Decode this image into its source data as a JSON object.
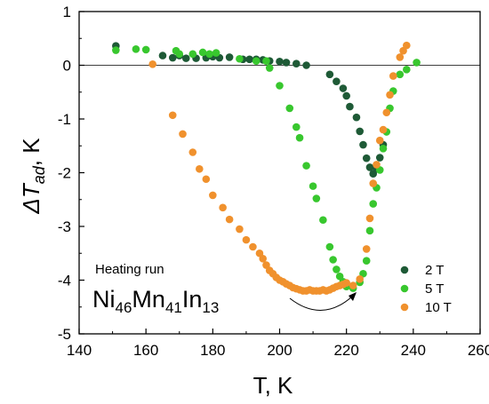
{
  "chart_data": {
    "type": "scatter",
    "xlabel": "T, K",
    "ylabel_main": "ΔT",
    "ylabel_sub": "ad",
    "ylabel_suffix": ", K",
    "xlim": [
      140,
      260
    ],
    "ylim": [
      -5,
      1
    ],
    "xticks": [
      140,
      160,
      180,
      200,
      220,
      240,
      260
    ],
    "yticks": [
      1,
      0,
      -1,
      -2,
      -3,
      -4,
      -5
    ],
    "zero_line": true,
    "legend_position": "bottom-right",
    "annotations": {
      "heating": "Heating run",
      "formula": [
        {
          "text": "Ni",
          "sub": false
        },
        {
          "text": "46",
          "sub": true
        },
        {
          "text": "Mn",
          "sub": false
        },
        {
          "text": "41",
          "sub": true
        },
        {
          "text": "In",
          "sub": false
        },
        {
          "text": "13",
          "sub": true
        }
      ]
    },
    "series": [
      {
        "name": "2 T",
        "color": "#1e5a36",
        "points": [
          [
            151,
            0.36
          ],
          [
            165,
            0.18
          ],
          [
            168,
            0.14
          ],
          [
            170,
            0.18
          ],
          [
            172,
            0.13
          ],
          [
            175,
            0.13
          ],
          [
            178,
            0.14
          ],
          [
            180,
            0.16
          ],
          [
            182,
            0.14
          ],
          [
            185,
            0.15
          ],
          [
            189,
            0.11
          ],
          [
            191,
            0.11
          ],
          [
            193,
            0.11
          ],
          [
            195,
            0.1
          ],
          [
            197,
            0.08
          ],
          [
            200,
            0.07
          ],
          [
            202,
            0.05
          ],
          [
            205,
            0.03
          ],
          [
            208,
            0.0
          ],
          [
            215,
            -0.17
          ],
          [
            217,
            -0.3
          ],
          [
            219,
            -0.43
          ],
          [
            220,
            -0.57
          ],
          [
            221,
            -0.77
          ],
          [
            223,
            -0.97
          ],
          [
            224,
            -1.23
          ],
          [
            225,
            -1.48
          ],
          [
            226,
            -1.73
          ],
          [
            227,
            -1.9
          ],
          [
            228,
            -2.02
          ],
          [
            229,
            -1.93
          ],
          [
            230,
            -1.72
          ],
          [
            231,
            -1.48
          ]
        ]
      },
      {
        "name": "5 T",
        "color": "#38c72e",
        "points": [
          [
            151,
            0.28
          ],
          [
            157,
            0.3
          ],
          [
            160,
            0.29
          ],
          [
            169,
            0.27
          ],
          [
            170,
            0.21
          ],
          [
            174,
            0.21
          ],
          [
            177,
            0.24
          ],
          [
            179,
            0.21
          ],
          [
            181,
            0.23
          ],
          [
            188,
            0.12
          ],
          [
            193,
            0.08
          ],
          [
            196,
            0.08
          ],
          [
            197,
            -0.05
          ],
          [
            200,
            -0.38
          ],
          [
            203,
            -0.8
          ],
          [
            205,
            -1.15
          ],
          [
            206,
            -1.35
          ],
          [
            208,
            -1.87
          ],
          [
            210,
            -2.25
          ],
          [
            211,
            -2.48
          ],
          [
            213,
            -2.88
          ],
          [
            215,
            -3.38
          ],
          [
            216,
            -3.62
          ],
          [
            217,
            -3.8
          ],
          [
            218,
            -3.93
          ],
          [
            219,
            -4.03
          ],
          [
            220,
            -4.12
          ],
          [
            222,
            -4.15
          ],
          [
            224,
            -4.04
          ],
          [
            225,
            -3.88
          ],
          [
            226,
            -3.64
          ],
          [
            227,
            -3.08
          ],
          [
            228,
            -2.58
          ],
          [
            229,
            -2.28
          ],
          [
            230,
            -1.95
          ],
          [
            231,
            -1.55
          ],
          [
            232,
            -1.24
          ],
          [
            233,
            -0.8
          ],
          [
            234,
            -0.48
          ],
          [
            236,
            -0.17
          ],
          [
            238,
            -0.08
          ],
          [
            241,
            0.05
          ]
        ]
      },
      {
        "name": "10 T",
        "color": "#f0912d",
        "points": [
          [
            168,
            -0.93
          ],
          [
            171,
            -1.28
          ],
          [
            174,
            -1.62
          ],
          [
            176,
            -1.93
          ],
          [
            178,
            -2.12
          ],
          [
            180,
            -2.42
          ],
          [
            183,
            -2.65
          ],
          [
            185,
            -2.87
          ],
          [
            188,
            -3.05
          ],
          [
            190,
            -3.25
          ],
          [
            192,
            -3.38
          ],
          [
            194,
            -3.5
          ],
          [
            195,
            -3.6
          ],
          [
            196,
            -3.72
          ],
          [
            197,
            -3.82
          ],
          [
            198,
            -3.88
          ],
          [
            199,
            -3.95
          ],
          [
            200,
            -4.0
          ],
          [
            201,
            -4.03
          ],
          [
            202,
            -4.07
          ],
          [
            203,
            -4.1
          ],
          [
            204,
            -4.14
          ],
          [
            205,
            -4.16
          ],
          [
            206,
            -4.18
          ],
          [
            207,
            -4.2
          ],
          [
            208,
            -4.2
          ],
          [
            209,
            -4.18
          ],
          [
            210,
            -4.2
          ],
          [
            211,
            -4.2
          ],
          [
            212,
            -4.2
          ],
          [
            213,
            -4.18
          ],
          [
            214,
            -4.2
          ],
          [
            215,
            -4.18
          ],
          [
            216,
            -4.15
          ],
          [
            217,
            -4.12
          ],
          [
            218,
            -4.1
          ],
          [
            219,
            -4.08
          ],
          [
            220,
            -4.05
          ],
          [
            222,
            -4.1
          ],
          [
            224,
            -3.98
          ],
          [
            226,
            -3.42
          ],
          [
            227,
            -2.85
          ],
          [
            228,
            -2.2
          ],
          [
            229,
            -1.85
          ],
          [
            230,
            -1.4
          ],
          [
            231,
            -1.2
          ],
          [
            232,
            -0.88
          ],
          [
            233,
            -0.55
          ],
          [
            234,
            -0.2
          ],
          [
            236,
            0.15
          ],
          [
            237,
            0.27
          ],
          [
            238,
            0.37
          ],
          [
            162,
            0.02
          ]
        ]
      }
    ]
  }
}
